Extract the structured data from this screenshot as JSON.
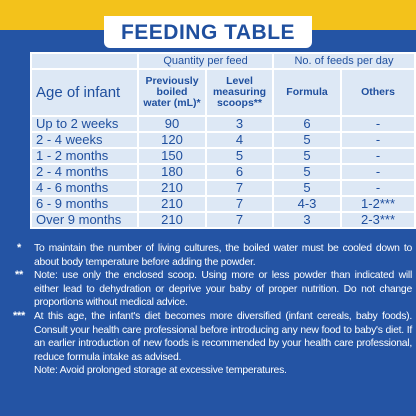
{
  "header": {
    "title": "FEEDING TABLE"
  },
  "table": {
    "group_headers": [
      "Quantity per feed",
      "No. of feeds per day"
    ],
    "columns": [
      "Age of infant",
      "Previously boiled water (mL)*",
      "Level measuring scoops**",
      "Formula",
      "Others"
    ],
    "rows": [
      [
        "Up to 2 weeks",
        "90",
        "3",
        "6",
        "-"
      ],
      [
        "2 - 4 weeks",
        "120",
        "4",
        "5",
        "-"
      ],
      [
        "1 - 2 months",
        "150",
        "5",
        "5",
        "-"
      ],
      [
        "2 - 4 months",
        "180",
        "6",
        "5",
        "-"
      ],
      [
        "4 - 6 months",
        "210",
        "7",
        "5",
        "-"
      ],
      [
        "6 - 9 months",
        "210",
        "7",
        "4-3",
        "1-2***"
      ],
      [
        "Over 9 months",
        "210",
        "7",
        "3",
        "2-3***"
      ]
    ]
  },
  "notes": [
    {
      "marker": "*",
      "text": "To maintain the number of living cultures, the boiled water must be cooled down to about body temperature before adding the powder."
    },
    {
      "marker": "**",
      "text": "Note: use only the enclosed scoop. Using more or less powder than indicated will either lead to dehydration or deprive your baby of proper nutrition. Do not change proportions without medical advice."
    },
    {
      "marker": "***",
      "text": "At this age, the infant's diet becomes more diversified (infant cereals, baby foods). Consult your health care professional before introducing any new food to baby's diet. If an earlier introduction of new foods is recommended by your health care professional, reduce formula intake as advised."
    },
    {
      "marker": "",
      "text": "Note: Avoid prolonged storage at excessive temperatures."
    }
  ]
}
